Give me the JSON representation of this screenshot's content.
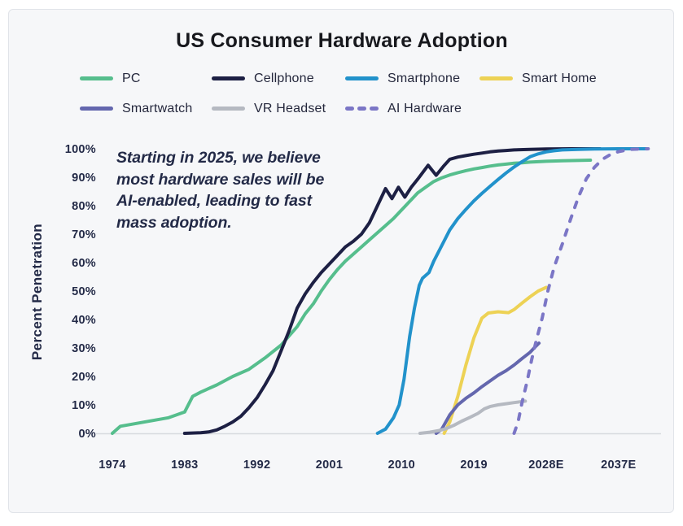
{
  "title": "US Consumer Hardware Adoption",
  "ylabel": "Percent Penetration",
  "annotation": {
    "lines": [
      "Starting in 2025, we believe",
      "most hardware sales will be",
      "AI-enabled, leading to fast",
      "mass adoption."
    ]
  },
  "legend": [
    {
      "label": "PC",
      "color": "#56BE8D",
      "dashed": false
    },
    {
      "label": "Cellphone",
      "color": "#1D2044",
      "dashed": false
    },
    {
      "label": "Smartphone",
      "color": "#2292CB",
      "dashed": false
    },
    {
      "label": "Smart Home",
      "color": "#EDD255",
      "dashed": false
    },
    {
      "label": "Smartwatch",
      "color": "#6467AE",
      "dashed": false
    },
    {
      "label": "VR Headset",
      "color": "#B5B9C1",
      "dashed": false
    },
    {
      "label": "AI Hardware",
      "color": "#7B76C6",
      "dashed": true
    }
  ],
  "colors": {
    "background": "#FFFFFF",
    "card_background": "#F6F7F9",
    "card_border": "#E1E4E9",
    "axis_line": "#D8DBDF",
    "text": "#232A47",
    "title_text": "#17181D"
  },
  "chart_data": {
    "type": "line",
    "title": "US Consumer Hardware Adoption",
    "xlabel": "",
    "ylabel": "Percent Penetration",
    "units": "percent",
    "xlim": [
      1972,
      2041
    ],
    "ylim": [
      0,
      100
    ],
    "grid": false,
    "legend_position": "top",
    "x_ticks": [
      {
        "value": 1974,
        "label": "1974"
      },
      {
        "value": 1983,
        "label": "1983"
      },
      {
        "value": 1992,
        "label": "1992"
      },
      {
        "value": 2001,
        "label": "2001"
      },
      {
        "value": 2010,
        "label": "2010"
      },
      {
        "value": 2019,
        "label": "2019"
      },
      {
        "value": 2028,
        "label": "2028E"
      },
      {
        "value": 2037,
        "label": "2037E"
      }
    ],
    "y_ticks": [
      {
        "value": 0,
        "label": "0%"
      },
      {
        "value": 10,
        "label": "10%"
      },
      {
        "value": 20,
        "label": "20%"
      },
      {
        "value": 30,
        "label": "30%"
      },
      {
        "value": 40,
        "label": "40%"
      },
      {
        "value": 50,
        "label": "50%"
      },
      {
        "value": 60,
        "label": "60%"
      },
      {
        "value": 70,
        "label": "70%"
      },
      {
        "value": 80,
        "label": "80%"
      },
      {
        "value": 90,
        "label": "90%"
      },
      {
        "value": 100,
        "label": "100%"
      }
    ],
    "series": [
      {
        "name": "PC",
        "color": "#56BE8D",
        "dashed": false,
        "points": [
          [
            1974,
            0
          ],
          [
            1975,
            2.5
          ],
          [
            1977,
            3.5
          ],
          [
            1979,
            4.5
          ],
          [
            1981,
            5.5
          ],
          [
            1983,
            7.5
          ],
          [
            1984,
            13
          ],
          [
            1985,
            14.5
          ],
          [
            1987,
            17
          ],
          [
            1989,
            20
          ],
          [
            1991,
            22.5
          ],
          [
            1993,
            26.5
          ],
          [
            1995,
            31
          ],
          [
            1997,
            37.5
          ],
          [
            1998,
            42
          ],
          [
            1999,
            45.5
          ],
          [
            2000,
            50
          ],
          [
            2001,
            54
          ],
          [
            2002,
            57.5
          ],
          [
            2003,
            60.5
          ],
          [
            2004,
            63
          ],
          [
            2005,
            65.5
          ],
          [
            2006,
            68
          ],
          [
            2007,
            70.5
          ],
          [
            2008,
            73
          ],
          [
            2009,
            75.5
          ],
          [
            2010,
            78.5
          ],
          [
            2011,
            81.5
          ],
          [
            2012,
            84.5
          ],
          [
            2013,
            86.5
          ],
          [
            2014,
            88.5
          ],
          [
            2015,
            89.8
          ],
          [
            2016,
            90.8
          ],
          [
            2017,
            91.6
          ],
          [
            2018,
            92.3
          ],
          [
            2019,
            92.9
          ],
          [
            2020,
            93.4
          ],
          [
            2021,
            93.9
          ],
          [
            2022,
            94.3
          ],
          [
            2023,
            94.6
          ],
          [
            2024,
            94.9
          ],
          [
            2025,
            95.1
          ],
          [
            2026,
            95.3
          ],
          [
            2028,
            95.6
          ],
          [
            2030,
            95.8
          ],
          [
            2033.5,
            96
          ]
        ]
      },
      {
        "name": "Cellphone",
        "color": "#1D2044",
        "dashed": false,
        "points": [
          [
            1983,
            0
          ],
          [
            1985,
            0.2
          ],
          [
            1986,
            0.5
          ],
          [
            1987,
            1.2
          ],
          [
            1988,
            2.5
          ],
          [
            1989,
            4
          ],
          [
            1990,
            6
          ],
          [
            1991,
            9
          ],
          [
            1992,
            12.5
          ],
          [
            1993,
            17
          ],
          [
            1994,
            22
          ],
          [
            1995,
            29
          ],
          [
            1996,
            36
          ],
          [
            1997,
            44
          ],
          [
            1998,
            49
          ],
          [
            1999,
            53
          ],
          [
            2000,
            56.5
          ],
          [
            2001,
            59.5
          ],
          [
            2002,
            62.5
          ],
          [
            2003,
            65.5
          ],
          [
            2004,
            67.5
          ],
          [
            2005,
            70
          ],
          [
            2006,
            74
          ],
          [
            2007,
            80
          ],
          [
            2008,
            86
          ],
          [
            2008.8,
            82.5
          ],
          [
            2009.6,
            86.5
          ],
          [
            2010.4,
            83
          ],
          [
            2011.2,
            86.5
          ],
          [
            2012,
            89.3
          ],
          [
            2013.3,
            94.2
          ],
          [
            2014.3,
            90.7
          ],
          [
            2015.2,
            93.8
          ],
          [
            2016,
            96.3
          ],
          [
            2017,
            97.1
          ],
          [
            2018,
            97.6
          ],
          [
            2019,
            98.1
          ],
          [
            2020,
            98.5
          ],
          [
            2021,
            98.9
          ],
          [
            2022,
            99.2
          ],
          [
            2023,
            99.4
          ],
          [
            2024,
            99.6
          ],
          [
            2026,
            99.8
          ],
          [
            2028,
            99.9
          ],
          [
            2031,
            100
          ],
          [
            2034.7,
            100
          ]
        ]
      },
      {
        "name": "Smartphone",
        "color": "#2292CB",
        "dashed": false,
        "points": [
          [
            2007,
            0
          ],
          [
            2008,
            1.5
          ],
          [
            2009,
            5.5
          ],
          [
            2009.7,
            10
          ],
          [
            2010.3,
            19
          ],
          [
            2011,
            34
          ],
          [
            2011.6,
            44
          ],
          [
            2012.2,
            52
          ],
          [
            2012.6,
            54.5
          ],
          [
            2013.4,
            56.5
          ],
          [
            2014,
            60.5
          ],
          [
            2015,
            66
          ],
          [
            2016,
            71.5
          ],
          [
            2017,
            75.5
          ],
          [
            2018,
            78.7
          ],
          [
            2019,
            81.7
          ],
          [
            2020,
            84.3
          ],
          [
            2021,
            86.8
          ],
          [
            2022,
            89.2
          ],
          [
            2023,
            91.5
          ],
          [
            2024,
            93.6
          ],
          [
            2025,
            95.5
          ],
          [
            2026,
            97.2
          ],
          [
            2027,
            98.2
          ],
          [
            2028,
            98.9
          ],
          [
            2029,
            99.3
          ],
          [
            2030,
            99.6
          ],
          [
            2032,
            99.8
          ],
          [
            2034,
            99.9
          ],
          [
            2037,
            100
          ],
          [
            2040.5,
            100
          ]
        ]
      },
      {
        "name": "Smart Home",
        "color": "#EDD255",
        "dashed": false,
        "points": [
          [
            2015.3,
            0
          ],
          [
            2016,
            4
          ],
          [
            2017,
            13
          ],
          [
            2018,
            24
          ],
          [
            2019,
            33.5
          ],
          [
            2020,
            40.5
          ],
          [
            2020.8,
            42.3
          ],
          [
            2022,
            42.7
          ],
          [
            2023.3,
            42.4
          ],
          [
            2024,
            43.5
          ],
          [
            2025,
            45.8
          ],
          [
            2026,
            48
          ],
          [
            2027,
            50
          ],
          [
            2028,
            51.3
          ]
        ]
      },
      {
        "name": "Smartwatch",
        "color": "#6467AE",
        "dashed": false,
        "points": [
          [
            2014.3,
            0
          ],
          [
            2015,
            1.5
          ],
          [
            2016,
            6.5
          ],
          [
            2017,
            10
          ],
          [
            2018,
            12.3
          ],
          [
            2019,
            14.2
          ],
          [
            2020,
            16.4
          ],
          [
            2021,
            18.4
          ],
          [
            2022,
            20.4
          ],
          [
            2023,
            22
          ],
          [
            2024,
            24
          ],
          [
            2025,
            26.3
          ],
          [
            2026,
            28.5
          ],
          [
            2026.6,
            30.3
          ],
          [
            2027.1,
            31.7
          ]
        ]
      },
      {
        "name": "VR Headset",
        "color": "#B5B9C1",
        "dashed": false,
        "points": [
          [
            2012.3,
            0
          ],
          [
            2013.5,
            0.4
          ],
          [
            2014.5,
            0.9
          ],
          [
            2015.5,
            1.6
          ],
          [
            2016.5,
            2.8
          ],
          [
            2017.5,
            4.3
          ],
          [
            2018.5,
            5.6
          ],
          [
            2019.5,
            7
          ],
          [
            2020.3,
            8.6
          ],
          [
            2021,
            9.4
          ],
          [
            2022,
            10
          ],
          [
            2023,
            10.4
          ],
          [
            2024,
            10.8
          ],
          [
            2025.4,
            11.3
          ]
        ]
      },
      {
        "name": "AI Hardware",
        "color": "#7B76C6",
        "dashed": true,
        "points": [
          [
            2024,
            0
          ],
          [
            2024.5,
            4
          ],
          [
            2025,
            11
          ],
          [
            2025.6,
            18
          ],
          [
            2026.2,
            26
          ],
          [
            2026.8,
            33
          ],
          [
            2027.5,
            40.5
          ],
          [
            2028.2,
            50
          ],
          [
            2029,
            58.5
          ],
          [
            2030,
            66.5
          ],
          [
            2031,
            75
          ],
          [
            2032,
            83
          ],
          [
            2033,
            89.5
          ],
          [
            2034,
            93.5
          ],
          [
            2035,
            96.3
          ],
          [
            2036,
            98
          ],
          [
            2037,
            99
          ],
          [
            2038.5,
            99.8
          ],
          [
            2040.7,
            100
          ]
        ]
      }
    ]
  }
}
